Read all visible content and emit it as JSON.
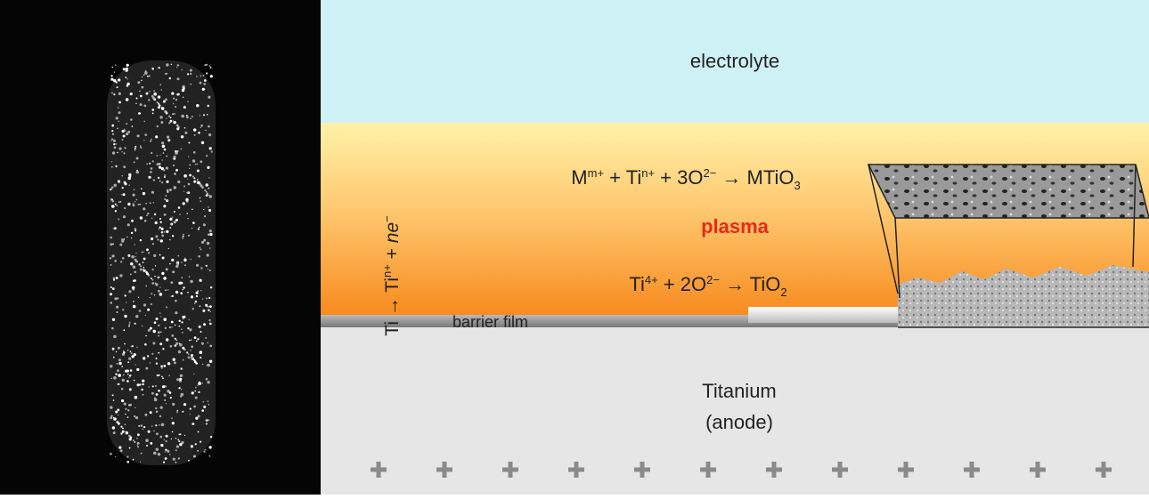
{
  "labels": {
    "electrolyte": "electrolyte",
    "plasma": "plasma",
    "barrier_film": "barrier film",
    "titanium": "Titanium",
    "anode": "(anode)"
  },
  "reactions": [
    [
      "M",
      "m+",
      " + Ti",
      "n+",
      " + 3O",
      "2−",
      " → MTiO",
      "3"
    ],
    [
      "Ti",
      "4+",
      " + 2O",
      "2−",
      " → TiO",
      "2"
    ],
    [
      "Ti → Ti",
      "n+",
      " + ",
      "ne",
      "−"
    ]
  ]
}
